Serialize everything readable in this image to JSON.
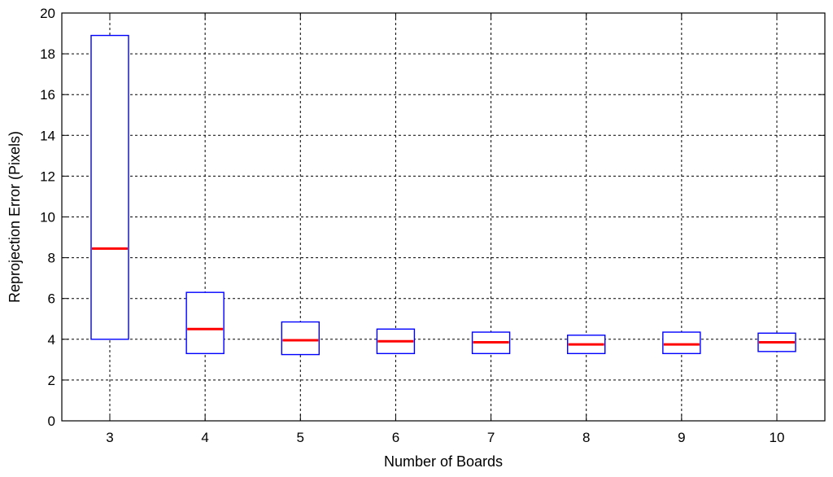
{
  "chart_data": {
    "type": "box",
    "xlabel": "Number of Boards",
    "ylabel": "Reprojection Error (Pixels)",
    "categories": [
      "3",
      "4",
      "5",
      "6",
      "7",
      "8",
      "9",
      "10"
    ],
    "ylim": [
      0,
      20
    ],
    "yticks": [
      0,
      2,
      4,
      6,
      8,
      10,
      12,
      14,
      16,
      18,
      20
    ],
    "ytick_labels": [
      "0",
      "2",
      "4",
      "6",
      "8",
      "10",
      "12",
      "14",
      "16",
      "18",
      "20"
    ],
    "grid": true,
    "grid_style": "dashed",
    "boxes": [
      {
        "category": "3",
        "q1": 4.0,
        "median": 8.45,
        "q3": 18.9
      },
      {
        "category": "4",
        "q1": 3.3,
        "median": 4.5,
        "q3": 6.3
      },
      {
        "category": "5",
        "q1": 3.25,
        "median": 3.95,
        "q3": 4.85
      },
      {
        "category": "6",
        "q1": 3.3,
        "median": 3.9,
        "q3": 4.5
      },
      {
        "category": "7",
        "q1": 3.3,
        "median": 3.85,
        "q3": 4.35
      },
      {
        "category": "8",
        "q1": 3.3,
        "median": 3.75,
        "q3": 4.2
      },
      {
        "category": "9",
        "q1": 3.3,
        "median": 3.75,
        "q3": 4.35
      },
      {
        "category": "10",
        "q1": 3.4,
        "median": 3.85,
        "q3": 4.3
      }
    ],
    "colors": {
      "box": "#0000ff",
      "median": "#ff0000",
      "grid": "#000000",
      "axis": "#000000"
    }
  }
}
